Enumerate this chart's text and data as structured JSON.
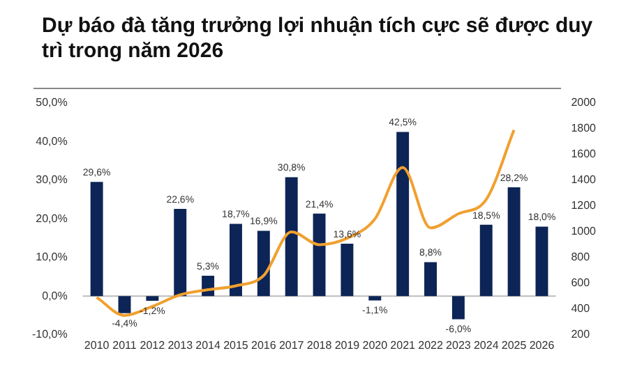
{
  "chart_data": {
    "type": "bar",
    "title": "Dự báo đà tăng trưởng lợi nhuận tích cực sẽ được duy trì trong năm 2026",
    "categories": [
      "2010",
      "2011",
      "2012",
      "2013",
      "2014",
      "2015",
      "2016",
      "2017",
      "2018",
      "2019",
      "2020",
      "2021",
      "2022",
      "2023",
      "2024",
      "2025",
      "2026"
    ],
    "series": [
      {
        "color": "#0d2456",
        "values": [
          29.6,
          -4.4,
          -1.2,
          22.6,
          5.3,
          18.7,
          16.9,
          30.8,
          21.4,
          13.6,
          -1.1,
          42.5,
          8.8,
          -6.0,
          18.5,
          28.2,
          18.0
        ],
        "value_labels": [
          "29,6%",
          "-4,4%",
          "-1,2%",
          "22,6%",
          "5,3%",
          "18,7%",
          "16,9%",
          "30,8%",
          "21,4%",
          "13,6%",
          "-1,1%",
          "42,5%",
          "8,8%",
          "-6,0%",
          "18,5%",
          "28,2%",
          "18,0%"
        ]
      },
      {
        "type": "line",
        "axis": "y2",
        "color": "#f0a030",
        "values": [
          490,
          350,
          420,
          510,
          550,
          580,
          660,
          1000,
          900,
          950,
          1100,
          1500,
          1030,
          1140,
          1250,
          1790,
          null
        ]
      }
    ],
    "ylim": [
      -10,
      50
    ],
    "yticks": [
      {
        "value": -10,
        "label": "-10,0%"
      },
      {
        "value": 0,
        "label": "0,0%"
      },
      {
        "value": 10,
        "label": "10,0%"
      },
      {
        "value": 20,
        "label": "20,0%"
      },
      {
        "value": 30,
        "label": "30,0%"
      },
      {
        "value": 40,
        "label": "40,0%"
      },
      {
        "value": 50,
        "label": "50,0%"
      }
    ],
    "y2lim": [
      200,
      2000
    ],
    "y2ticks": [
      200,
      400,
      600,
      800,
      1000,
      1200,
      1400,
      1600,
      1800,
      2000
    ],
    "ref_lines": [
      {
        "axis": "y",
        "value": 0,
        "color": "#bbbbbb"
      }
    ],
    "grid": false,
    "legend": false,
    "marker": "none",
    "line_style": "solid"
  }
}
